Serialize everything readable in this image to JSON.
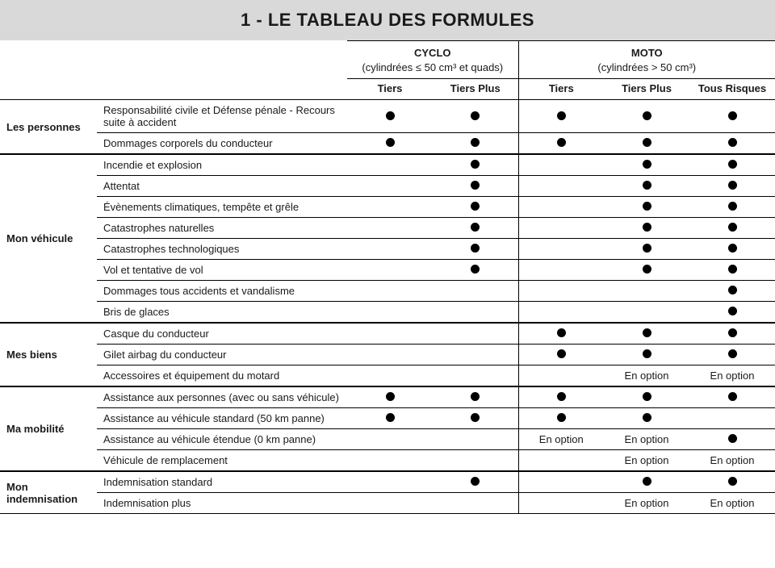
{
  "title": "1 - LE TABLEAU DES FORMULES",
  "colors": {
    "title_bg": "#d9d9d9",
    "dot": "#000000",
    "rule": "#000000",
    "text": "#1a1a1a",
    "background": "#ffffff"
  },
  "option_label": "En option",
  "groups": [
    {
      "name": "CYCLO",
      "sub": "(cylindrées ≤ 50 cm³ et quads)",
      "plans": [
        "Tiers",
        "Tiers Plus"
      ]
    },
    {
      "name": "MOTO",
      "sub": "(cylindrées > 50 cm³)",
      "plans": [
        "Tiers",
        "Tiers Plus",
        "Tous Risques"
      ]
    }
  ],
  "sections": [
    {
      "category": "Les personnes",
      "rows": [
        {
          "label": "Responsabilité civile et Défense pénale - Recours suite à accident",
          "cells": [
            "dot",
            "dot",
            "dot",
            "dot",
            "dot"
          ]
        },
        {
          "label": "Dommages corporels du conducteur",
          "cells": [
            "dot",
            "dot",
            "dot",
            "dot",
            "dot"
          ]
        }
      ]
    },
    {
      "category": "Mon véhicule",
      "rows": [
        {
          "label": "Incendie et explosion",
          "cells": [
            "",
            "dot",
            "",
            "dot",
            "dot"
          ]
        },
        {
          "label": "Attentat",
          "cells": [
            "",
            "dot",
            "",
            "dot",
            "dot"
          ]
        },
        {
          "label": "Évènements climatiques, tempête et grêle",
          "cells": [
            "",
            "dot",
            "",
            "dot",
            "dot"
          ]
        },
        {
          "label": "Catastrophes naturelles",
          "cells": [
            "",
            "dot",
            "",
            "dot",
            "dot"
          ]
        },
        {
          "label": "Catastrophes technologiques",
          "cells": [
            "",
            "dot",
            "",
            "dot",
            "dot"
          ]
        },
        {
          "label": "Vol et tentative de vol",
          "cells": [
            "",
            "dot",
            "",
            "dot",
            "dot"
          ]
        },
        {
          "label": "Dommages tous accidents et vandalisme",
          "cells": [
            "",
            "",
            "",
            "",
            "dot"
          ]
        },
        {
          "label": "Bris de glaces",
          "cells": [
            "",
            "",
            "",
            "",
            "dot"
          ]
        }
      ]
    },
    {
      "category": "Mes biens",
      "rows": [
        {
          "label": "Casque du conducteur",
          "cells": [
            "",
            "",
            "dot",
            "dot",
            "dot"
          ]
        },
        {
          "label": "Gilet airbag du conducteur",
          "cells": [
            "",
            "",
            "dot",
            "dot",
            "dot"
          ]
        },
        {
          "label": "Accessoires et équipement du motard",
          "cells": [
            "",
            "",
            "",
            "option",
            "option"
          ]
        }
      ]
    },
    {
      "category": "Ma mobilité",
      "rows": [
        {
          "label": "Assistance aux personnes (avec ou sans véhicule)",
          "cells": [
            "dot",
            "dot",
            "dot",
            "dot",
            "dot"
          ]
        },
        {
          "label": "Assistance au véhicule standard (50 km panne)",
          "cells": [
            "dot",
            "dot",
            "dot",
            "dot",
            ""
          ]
        },
        {
          "label": "Assistance au véhicule étendue (0 km panne)",
          "cells": [
            "",
            "",
            "option",
            "option",
            "dot"
          ]
        },
        {
          "label": "Véhicule de remplacement",
          "cells": [
            "",
            "",
            "",
            "option",
            "option"
          ]
        }
      ]
    },
    {
      "category": "Mon indemnisation",
      "rows": [
        {
          "label": "Indemnisation standard",
          "cells": [
            "",
            "dot",
            "",
            "dot",
            "dot"
          ]
        },
        {
          "label": "Indemnisation plus",
          "cells": [
            "",
            "",
            "",
            "option",
            "option"
          ]
        }
      ]
    }
  ]
}
